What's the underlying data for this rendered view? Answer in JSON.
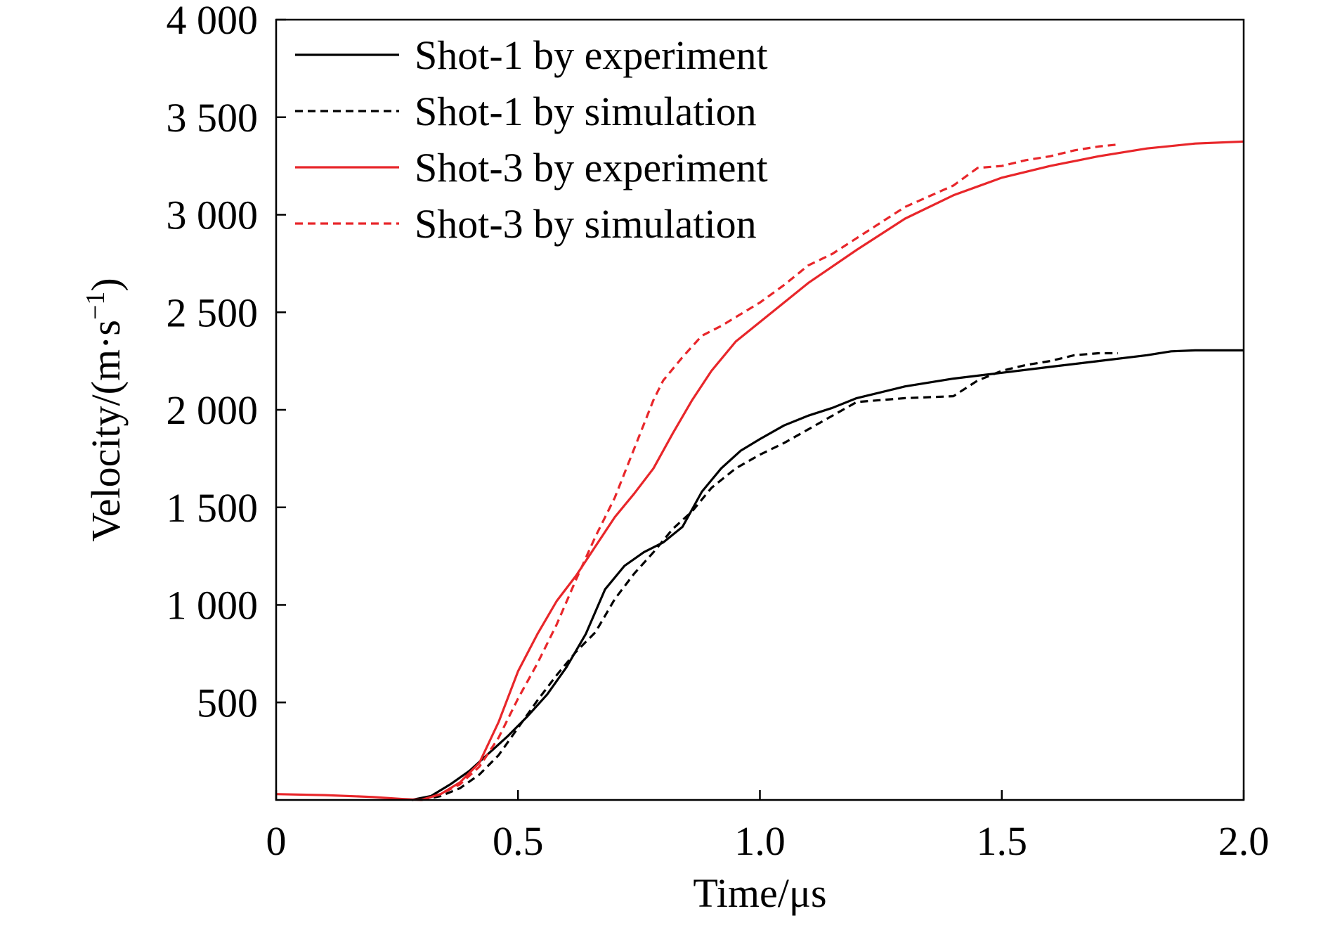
{
  "chart_data": {
    "type": "line",
    "xlabel": "Time/μs",
    "ylabel": "Velocity/(m·s",
    "ylabel_sup": "−1",
    "ylabel_close": ")",
    "xlim": [
      0,
      2.0
    ],
    "ylim": [
      0,
      4000
    ],
    "x_ticks": [
      {
        "value": 0,
        "label": "0"
      },
      {
        "value": 0.5,
        "label": "0.5"
      },
      {
        "value": 1.0,
        "label": "1.0"
      },
      {
        "value": 1.5,
        "label": "1.5"
      },
      {
        "value": 2.0,
        "label": "2.0"
      }
    ],
    "y_ticks": [
      {
        "value": 500,
        "label": "500"
      },
      {
        "value": 1000,
        "label": "1 000"
      },
      {
        "value": 1500,
        "label": "1 500"
      },
      {
        "value": 2000,
        "label": "2 000"
      },
      {
        "value": 2500,
        "label": "2 500"
      },
      {
        "value": 3000,
        "label": "3 000"
      },
      {
        "value": 3500,
        "label": "3 500"
      },
      {
        "value": 4000,
        "label": "4 000"
      }
    ],
    "grid": false,
    "legend_position": "top-left",
    "series": [
      {
        "name": "Shot-1 by experiment",
        "color": "#000000",
        "dash": "solid",
        "x": [
          0.28,
          0.32,
          0.36,
          0.4,
          0.44,
          0.48,
          0.52,
          0.56,
          0.6,
          0.64,
          0.68,
          0.72,
          0.76,
          0.8,
          0.84,
          0.88,
          0.92,
          0.96,
          1.0,
          1.05,
          1.1,
          1.15,
          1.2,
          1.3,
          1.4,
          1.5,
          1.6,
          1.7,
          1.8,
          1.85,
          1.9,
          2.0
        ],
        "y": [
          0,
          20,
          80,
          150,
          240,
          330,
          430,
          540,
          680,
          850,
          1080,
          1200,
          1270,
          1320,
          1400,
          1580,
          1700,
          1790,
          1850,
          1920,
          1970,
          2010,
          2060,
          2120,
          2160,
          2190,
          2220,
          2250,
          2280,
          2300,
          2305,
          2305
        ]
      },
      {
        "name": "Shot-1 by simulation",
        "color": "#000000",
        "dash": "dashed",
        "x": [
          0.3,
          0.34,
          0.38,
          0.42,
          0.46,
          0.5,
          0.54,
          0.58,
          0.62,
          0.66,
          0.7,
          0.74,
          0.78,
          0.82,
          0.86,
          0.9,
          0.95,
          1.0,
          1.05,
          1.1,
          1.2,
          1.3,
          1.4,
          1.45,
          1.5,
          1.55,
          1.6,
          1.65,
          1.7,
          1.74
        ],
        "y": [
          0,
          20,
          60,
          130,
          230,
          370,
          510,
          640,
          760,
          860,
          1030,
          1160,
          1270,
          1390,
          1480,
          1600,
          1700,
          1770,
          1830,
          1900,
          2040,
          2060,
          2070,
          2150,
          2200,
          2230,
          2250,
          2280,
          2290,
          2290
        ]
      },
      {
        "name": "Shot-3 by experiment",
        "color": "#e8262a",
        "dash": "solid",
        "x": [
          0.0,
          0.1,
          0.2,
          0.26,
          0.3,
          0.34,
          0.38,
          0.42,
          0.46,
          0.5,
          0.54,
          0.58,
          0.62,
          0.66,
          0.7,
          0.74,
          0.78,
          0.82,
          0.86,
          0.9,
          0.95,
          1.0,
          1.05,
          1.1,
          1.2,
          1.3,
          1.4,
          1.5,
          1.6,
          1.7,
          1.8,
          1.9,
          2.0
        ],
        "y": [
          30,
          25,
          15,
          5,
          0,
          30,
          90,
          190,
          400,
          660,
          850,
          1020,
          1150,
          1300,
          1450,
          1570,
          1700,
          1880,
          2050,
          2200,
          2350,
          2450,
          2550,
          2650,
          2820,
          2980,
          3100,
          3190,
          3250,
          3300,
          3340,
          3365,
          3375
        ]
      },
      {
        "name": "Shot-3 by simulation",
        "color": "#e8262a",
        "dash": "dashed",
        "x": [
          0.3,
          0.34,
          0.38,
          0.42,
          0.46,
          0.5,
          0.54,
          0.58,
          0.62,
          0.66,
          0.7,
          0.74,
          0.78,
          0.8,
          0.84,
          0.88,
          0.92,
          0.96,
          1.0,
          1.05,
          1.1,
          1.15,
          1.2,
          1.3,
          1.4,
          1.45,
          1.5,
          1.55,
          1.6,
          1.65,
          1.7,
          1.74
        ],
        "y": [
          0,
          30,
          80,
          170,
          320,
          520,
          700,
          900,
          1130,
          1350,
          1550,
          1800,
          2050,
          2150,
          2270,
          2380,
          2430,
          2490,
          2550,
          2640,
          2740,
          2800,
          2880,
          3040,
          3150,
          3240,
          3250,
          3280,
          3300,
          3330,
          3350,
          3360
        ]
      }
    ]
  }
}
